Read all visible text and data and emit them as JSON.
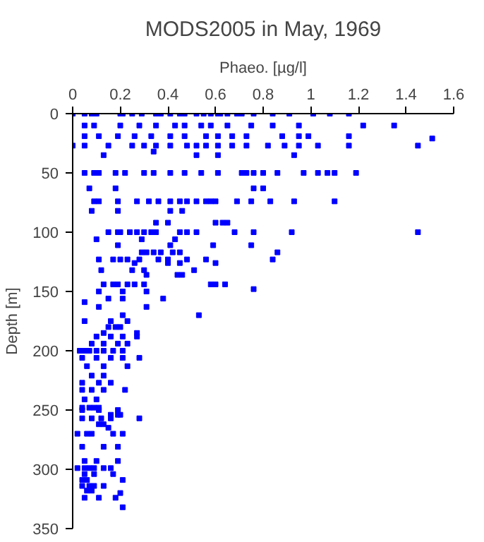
{
  "chart_data": {
    "type": "scatter",
    "title": "MODS2005 in May, 1969",
    "xlabel": "Phaeo. [µg/l]",
    "ylabel": "Depth [m]",
    "xlim": [
      0,
      1.6
    ],
    "xticks": [
      0,
      0.2,
      0.4,
      0.6,
      0.8,
      1,
      1.2,
      1.4,
      1.6
    ],
    "ylim": [
      350,
      0
    ],
    "yticks": [
      0,
      50,
      100,
      150,
      200,
      250,
      300,
      350
    ],
    "color": "#0000ff",
    "marker": "square",
    "grid": false,
    "x": [
      0.0,
      0.05,
      0.08,
      0.1,
      0.2,
      0.21,
      0.25,
      0.29,
      0.35,
      0.37,
      0.41,
      0.45,
      0.47,
      0.52,
      0.55,
      0.58,
      0.61,
      0.62,
      0.65,
      0.69,
      0.71,
      0.76,
      0.84,
      0.91,
      1.01,
      1.08,
      1.16,
      0.05,
      0.09,
      0.2,
      0.28,
      0.35,
      0.43,
      0.47,
      0.54,
      0.58,
      0.65,
      0.75,
      0.84,
      0.95,
      1.22,
      1.35,
      0.05,
      0.11,
      0.19,
      0.26,
      0.33,
      0.41,
      0.47,
      0.56,
      0.61,
      0.67,
      0.73,
      0.88,
      0.95,
      0.99,
      1.16,
      1.51,
      0.0,
      0.05,
      0.15,
      0.25,
      0.3,
      0.35,
      0.41,
      0.48,
      0.52,
      0.56,
      0.61,
      0.67,
      0.73,
      0.82,
      0.89,
      0.95,
      1.03,
      1.16,
      1.45,
      0.34,
      0.13,
      0.52,
      0.61,
      0.93,
      0.05,
      0.09,
      0.11,
      0.18,
      0.22,
      0.3,
      0.34,
      0.41,
      0.47,
      0.54,
      0.61,
      0.71,
      0.73,
      0.76,
      0.8,
      0.86,
      0.97,
      1.03,
      1.07,
      1.1,
      1.19,
      0.07,
      0.18,
      0.76,
      0.8,
      0.09,
      0.11,
      0.19,
      0.27,
      0.32,
      0.36,
      0.41,
      0.45,
      0.48,
      0.52,
      0.56,
      0.58,
      0.6,
      0.69,
      0.75,
      0.83,
      0.93,
      1.1,
      0.08,
      0.19,
      0.41,
      0.46,
      0.35,
      0.4,
      0.6,
      0.63,
      0.65,
      0.15,
      0.19,
      0.2,
      0.24,
      0.27,
      0.3,
      0.33,
      0.35,
      0.45,
      0.48,
      0.52,
      0.68,
      0.76,
      0.92,
      1.45,
      0.1,
      0.29,
      0.43,
      0.19,
      0.41,
      0.59,
      0.75,
      0.29,
      0.31,
      0.34,
      0.37,
      0.42,
      0.45,
      0.86,
      0.11,
      0.17,
      0.2,
      0.23,
      0.28,
      0.36,
      0.4,
      0.48,
      0.56,
      0.84,
      0.26,
      0.4,
      0.45,
      0.6,
      0.12,
      0.25,
      0.3,
      0.51,
      0.31,
      0.44,
      0.46,
      0.13,
      0.17,
      0.19,
      0.23,
      0.26,
      0.3,
      0.58,
      0.6,
      0.64,
      0.76,
      0.11,
      0.21,
      0.31,
      0.15,
      0.21,
      0.38,
      0.05,
      0.11,
      0.31,
      0.21,
      0.53,
      0.05,
      0.16,
      0.23,
      0.15,
      0.18,
      0.2,
      0.13,
      0.27,
      0.1,
      0.16,
      0.21,
      0.27,
      0.08,
      0.13,
      0.19,
      0.23,
      0.03,
      0.05,
      0.07,
      0.1,
      0.13,
      0.17,
      0.21,
      0.04,
      0.1,
      0.16,
      0.21,
      0.28,
      0.06,
      0.13,
      0.23,
      0.08,
      0.13,
      0.04,
      0.11,
      0.16,
      0.04,
      0.08,
      0.13,
      0.22,
      0.05,
      0.1,
      0.04,
      0.07,
      0.09,
      0.11,
      0.04,
      0.11,
      0.19,
      0.16,
      0.19,
      0.2,
      0.04,
      0.08,
      0.12,
      0.16,
      0.28,
      0.11,
      0.13,
      0.15,
      0.02,
      0.06,
      0.08,
      0.17,
      0.21,
      0.04,
      0.13,
      0.19,
      0.05,
      0.1,
      0.19,
      0.02,
      0.05,
      0.07,
      0.09,
      0.13,
      0.16,
      0.05,
      0.09,
      0.17,
      0.04,
      0.06,
      0.21,
      0.04,
      0.07,
      0.09,
      0.13,
      0.06,
      0.08,
      0.2,
      0.05,
      0.11,
      0.18,
      0.21
    ],
    "values": [
      0,
      0,
      0,
      0,
      0,
      0,
      0,
      0,
      0,
      0,
      0,
      0,
      0,
      0,
      0,
      0,
      0,
      0,
      0,
      0,
      0,
      0,
      0,
      0,
      0,
      0,
      0,
      10,
      10,
      10,
      10,
      10,
      10,
      10,
      10,
      10,
      10,
      10,
      10,
      10,
      10,
      10,
      19,
      19,
      19,
      19,
      19,
      19,
      19,
      19,
      19,
      19,
      19,
      19,
      19,
      19,
      19,
      21,
      27,
      27,
      27,
      27,
      27,
      27,
      27,
      27,
      27,
      27,
      27,
      27,
      27,
      27,
      27,
      27,
      27,
      27,
      27,
      32,
      35,
      35,
      35,
      35,
      50,
      50,
      50,
      50,
      50,
      50,
      50,
      50,
      50,
      50,
      50,
      50,
      50,
      50,
      50,
      50,
      50,
      50,
      50,
      50,
      50,
      63,
      63,
      63,
      63,
      74,
      74,
      74,
      74,
      74,
      74,
      74,
      74,
      74,
      74,
      74,
      74,
      74,
      74,
      74,
      74,
      74,
      74,
      82,
      82,
      82,
      82,
      92,
      92,
      92,
      92,
      92,
      100,
      100,
      100,
      100,
      100,
      100,
      100,
      100,
      100,
      100,
      100,
      100,
      100,
      100,
      100,
      106,
      106,
      106,
      111,
      111,
      111,
      111,
      117,
      117,
      117,
      117,
      117,
      117,
      117,
      123,
      123,
      123,
      123,
      123,
      123,
      123,
      123,
      123,
      123,
      126,
      126,
      126,
      126,
      132,
      132,
      132,
      132,
      136,
      136,
      136,
      144,
      144,
      144,
      144,
      144,
      144,
      144,
      144,
      144,
      148,
      150,
      150,
      150,
      156,
      156,
      156,
      159,
      163,
      163,
      170,
      170,
      175,
      175,
      175,
      180,
      180,
      180,
      185,
      185,
      188,
      188,
      188,
      188,
      194,
      194,
      194,
      194,
      200,
      200,
      200,
      200,
      200,
      200,
      200,
      206,
      206,
      206,
      206,
      206,
      213,
      213,
      213,
      221,
      221,
      227,
      227,
      227,
      233,
      233,
      233,
      233,
      241,
      241,
      248,
      248,
      248,
      248,
      250,
      250,
      250,
      254,
      254,
      254,
      257,
      257,
      257,
      257,
      257,
      262,
      262,
      265,
      270,
      270,
      270,
      270,
      270,
      281,
      281,
      281,
      293,
      293,
      293,
      299,
      299,
      299,
      299,
      299,
      299,
      304,
      304,
      304,
      309,
      309,
      309,
      314,
      314,
      314,
      314,
      318,
      318,
      320,
      324,
      324,
      324,
      332
    ]
  }
}
